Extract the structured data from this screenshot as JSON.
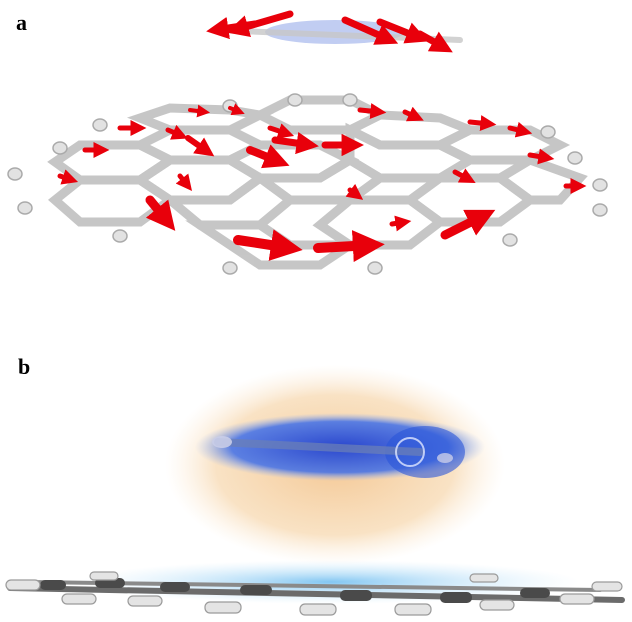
{
  "panels": [
    {
      "label": "a"
    },
    {
      "label": "b"
    }
  ],
  "colors": {
    "arrow": "#e8000b",
    "bond": "#c9c9c9",
    "bond_dark": "#5a5a5a",
    "cap": "#dcdcdc",
    "density_negative": "#2f5fe0",
    "density_positive": "#f0b070",
    "density_light_blue": "#7cc6f0"
  }
}
